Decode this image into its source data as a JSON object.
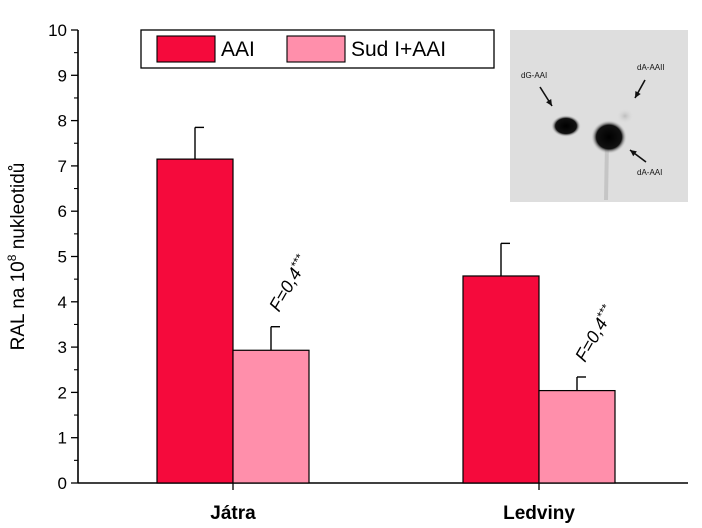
{
  "chart_data": {
    "type": "bar",
    "categories": [
      "Játra",
      "Ledviny"
    ],
    "series": [
      {
        "name": "AAI",
        "values": [
          7.15,
          4.57
        ],
        "errors": [
          0.7,
          0.72
        ],
        "color": "#f50a3c"
      },
      {
        "name": "Sud I+AAI",
        "values": [
          2.93,
          2.04
        ],
        "errors": [
          0.52,
          0.3
        ],
        "color": "#ff8fab"
      }
    ],
    "ylabel_main": "RAL na 10",
    "ylabel_sup": "8",
    "ylabel_tail": " nukleotidů",
    "ylim": [
      0,
      10
    ],
    "yticks": [
      "0",
      "1",
      "2",
      "3",
      "4",
      "5",
      "6",
      "7",
      "8",
      "9",
      "10"
    ],
    "legend_position": "top-left",
    "annotations": [
      {
        "category_index": 0,
        "text": "F=0,4",
        "stars": "***"
      },
      {
        "category_index": 1,
        "text": "F=0,4",
        "stars": "***"
      }
    ],
    "inset": {
      "labels": [
        "dG-AAI",
        "dA-AAII",
        "dA-AAI"
      ]
    }
  }
}
